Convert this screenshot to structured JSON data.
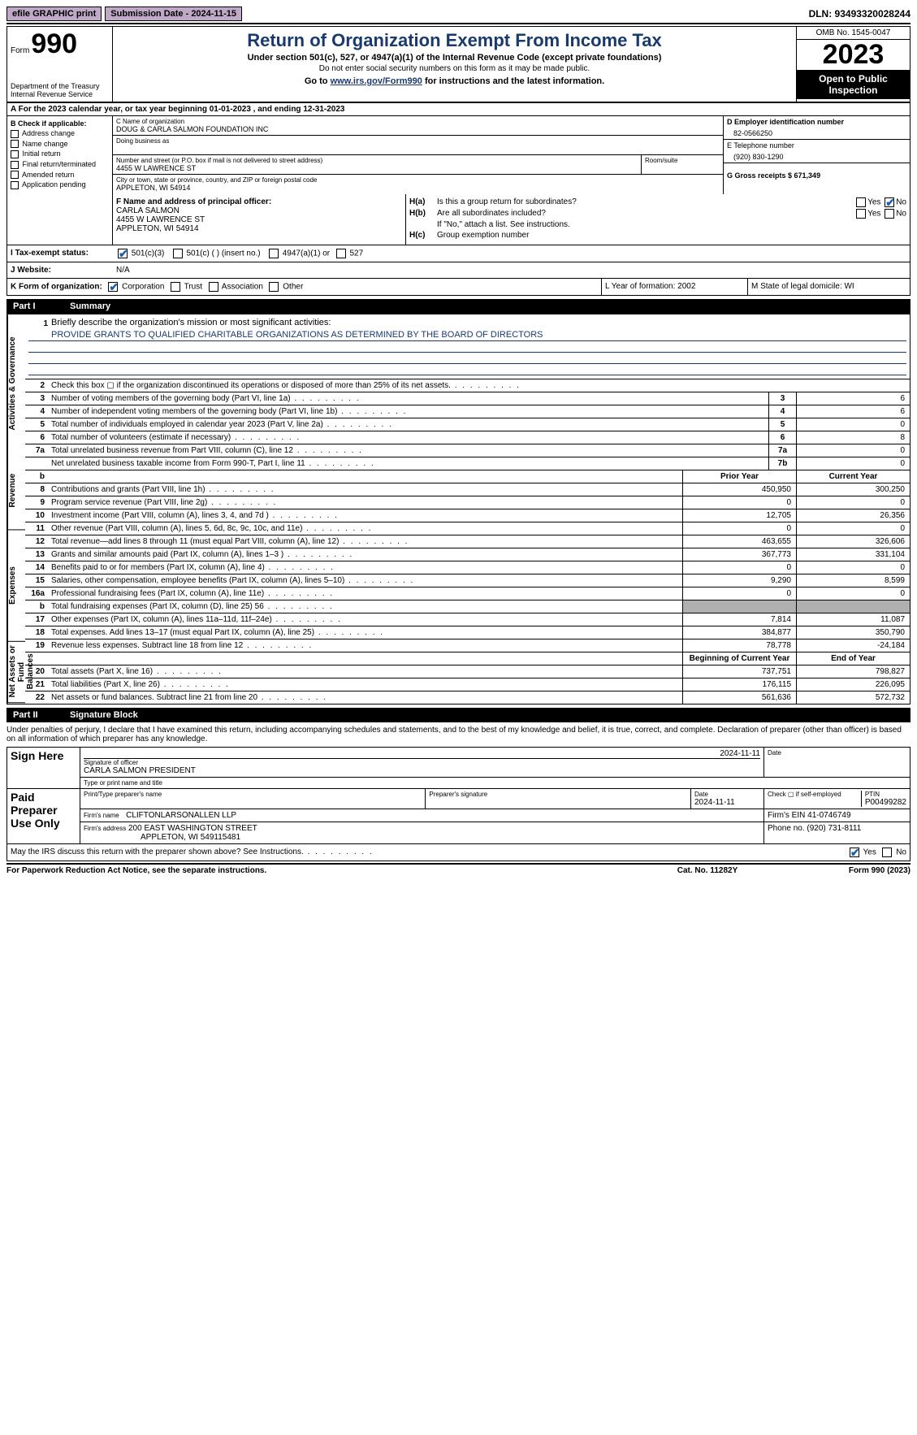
{
  "topbar": {
    "efile": "efile GRAPHIC print",
    "submission": "Submission Date - 2024-11-15",
    "dln": "DLN: 93493320028244"
  },
  "header": {
    "form_word": "Form",
    "form_num": "990",
    "dept": "Department of the Treasury Internal Revenue Service",
    "title": "Return of Organization Exempt From Income Tax",
    "subtitle": "Under section 501(c), 527, or 4947(a)(1) of the Internal Revenue Code (except private foundations)",
    "subtitle2": "Do not enter social security numbers on this form as it may be made public.",
    "goto_pre": "Go to ",
    "goto_link": "www.irs.gov/Form990",
    "goto_post": " for instructions and the latest information.",
    "omb": "OMB No. 1545-0047",
    "year": "2023",
    "inspect": "Open to Public Inspection"
  },
  "row_a": "A  For the 2023 calendar year, or tax year beginning 01-01-2023   , and ending 12-31-2023",
  "col_b": {
    "hdr": "B Check if applicable:",
    "items": [
      "Address change",
      "Name change",
      "Initial return",
      "Final return/terminated",
      "Amended return",
      "Application pending"
    ]
  },
  "col_c": {
    "name_lbl": "C Name of organization",
    "name": "DOUG & CARLA SALMON FOUNDATION INC",
    "dba_lbl": "Doing business as",
    "street_lbl": "Number and street (or P.O. box if mail is not delivered to street address)",
    "street": "4455 W LAWRENCE ST",
    "room_lbl": "Room/suite",
    "city_lbl": "City or town, state or province, country, and ZIP or foreign postal code",
    "city": "APPLETON, WI  54914"
  },
  "col_de": {
    "d_lbl": "D Employer identification number",
    "ein": "82-0566250",
    "e_lbl": "E Telephone number",
    "phone": "(920) 830-1290",
    "g": "G Gross receipts $ 671,349"
  },
  "f": {
    "lbl": "F  Name and address of principal officer:",
    "name": "CARLA SALMON",
    "street": "4455 W LAWRENCE ST",
    "city": "APPLETON, WI  54914"
  },
  "h": {
    "a": "Is this a group return for subordinates?",
    "b": "Are all subordinates included?",
    "b2": "If \"No,\" attach a list. See instructions.",
    "c": "Group exemption number",
    "yes": "Yes",
    "no": "No"
  },
  "status": {
    "i_lbl": "I    Tax-exempt status:",
    "o1": "501(c)(3)",
    "o2": "501(c) (  ) (insert no.)",
    "o3": "4947(a)(1) or",
    "o4": "527"
  },
  "j": {
    "lbl": "J    Website:",
    "val": "N/A"
  },
  "k": {
    "lbl": "K Form of organization:",
    "o1": "Corporation",
    "o2": "Trust",
    "o3": "Association",
    "o4": "Other",
    "l": "L Year of formation: 2002",
    "m": "M State of legal domicile: WI"
  },
  "part1": {
    "num": "Part I",
    "title": "Summary"
  },
  "mission": {
    "n": "1",
    "lbl": "Briefly describe the organization's mission or most significant activities:",
    "text": "PROVIDE GRANTS TO QUALIFIED CHARITABLE ORGANIZATIONS AS DETERMINED BY THE BOARD OF DIRECTORS"
  },
  "gov_rows": [
    {
      "n": "2",
      "d": "Check this box ▢ if the organization discontinued its operations or disposed of more than 25% of its net assets."
    },
    {
      "n": "3",
      "d": "Number of voting members of the governing body (Part VI, line 1a)",
      "c": "3",
      "v": "6"
    },
    {
      "n": "4",
      "d": "Number of independent voting members of the governing body (Part VI, line 1b)",
      "c": "4",
      "v": "6"
    },
    {
      "n": "5",
      "d": "Total number of individuals employed in calendar year 2023 (Part V, line 2a)",
      "c": "5",
      "v": "0"
    },
    {
      "n": "6",
      "d": "Total number of volunteers (estimate if necessary)",
      "c": "6",
      "v": "8"
    },
    {
      "n": "7a",
      "d": "Total unrelated business revenue from Part VIII, column (C), line 12",
      "c": "7a",
      "v": "0"
    },
    {
      "n": "",
      "d": "Net unrelated business taxable income from Form 990-T, Part I, line 11",
      "c": "7b",
      "v": "0"
    }
  ],
  "col_hdrs": {
    "b": "b",
    "py": "Prior Year",
    "cy": "Current Year"
  },
  "rev_rows": [
    {
      "n": "8",
      "d": "Contributions and grants (Part VIII, line 1h)",
      "py": "450,950",
      "cy": "300,250"
    },
    {
      "n": "9",
      "d": "Program service revenue (Part VIII, line 2g)",
      "py": "0",
      "cy": "0"
    },
    {
      "n": "10",
      "d": "Investment income (Part VIII, column (A), lines 3, 4, and 7d )",
      "py": "12,705",
      "cy": "26,356"
    },
    {
      "n": "11",
      "d": "Other revenue (Part VIII, column (A), lines 5, 6d, 8c, 9c, 10c, and 11e)",
      "py": "0",
      "cy": "0"
    },
    {
      "n": "12",
      "d": "Total revenue—add lines 8 through 11 (must equal Part VIII, column (A), line 12)",
      "py": "463,655",
      "cy": "326,606"
    }
  ],
  "exp_rows": [
    {
      "n": "13",
      "d": "Grants and similar amounts paid (Part IX, column (A), lines 1–3 )",
      "py": "367,773",
      "cy": "331,104"
    },
    {
      "n": "14",
      "d": "Benefits paid to or for members (Part IX, column (A), line 4)",
      "py": "0",
      "cy": "0"
    },
    {
      "n": "15",
      "d": "Salaries, other compensation, employee benefits (Part IX, column (A), lines 5–10)",
      "py": "9,290",
      "cy": "8,599"
    },
    {
      "n": "16a",
      "d": "Professional fundraising fees (Part IX, column (A), line 11e)",
      "py": "0",
      "cy": "0"
    },
    {
      "n": "b",
      "d": "Total fundraising expenses (Part IX, column (D), line 25) 56",
      "py": "",
      "cy": "",
      "shade": true
    },
    {
      "n": "17",
      "d": "Other expenses (Part IX, column (A), lines 11a–11d, 11f–24e)",
      "py": "7,814",
      "cy": "11,087"
    },
    {
      "n": "18",
      "d": "Total expenses. Add lines 13–17 (must equal Part IX, column (A), line 25)",
      "py": "384,877",
      "cy": "350,790"
    },
    {
      "n": "19",
      "d": "Revenue less expenses. Subtract line 18 from line 12",
      "py": "78,778",
      "cy": "-24,184"
    }
  ],
  "na_hdrs": {
    "py": "Beginning of Current Year",
    "cy": "End of Year"
  },
  "na_rows": [
    {
      "n": "20",
      "d": "Total assets (Part X, line 16)",
      "py": "737,751",
      "cy": "798,827"
    },
    {
      "n": "21",
      "d": "Total liabilities (Part X, line 26)",
      "py": "176,115",
      "cy": "226,095"
    },
    {
      "n": "22",
      "d": "Net assets or fund balances. Subtract line 21 from line 20",
      "py": "561,636",
      "cy": "572,732"
    }
  ],
  "vtabs": {
    "gov": "Activities & Governance",
    "rev": "Revenue",
    "exp": "Expenses",
    "na": "Net Assets or Fund Balances"
  },
  "part2": {
    "num": "Part II",
    "title": "Signature Block"
  },
  "sig": {
    "intro": "Under penalties of perjury, I declare that I have examined this return, including accompanying schedules and statements, and to the best of my knowledge and belief, it is true, correct, and complete. Declaration of preparer (other than officer) is based on all information of which preparer has any knowledge.",
    "sign_here": "Sign Here",
    "date1": "2024-11-11",
    "sig_of": "Signature of officer",
    "officer": "CARLA SALMON  PRESIDENT",
    "type_lbl": "Type or print name and title",
    "date_lbl": "Date",
    "paid": "Paid Preparer Use Only",
    "prep_name_lbl": "Print/Type preparer's name",
    "prep_sig_lbl": "Preparer's signature",
    "date2": "2024-11-11",
    "check_self": "Check ▢ if self-employed",
    "ptin_lbl": "PTIN",
    "ptin": "P00499282",
    "firm_name_lbl": "Firm's name",
    "firm_name": "CLIFTONLARSONALLEN LLP",
    "firm_ein": "Firm's EIN 41-0746749",
    "firm_addr_lbl": "Firm's address",
    "firm_addr1": "200 EAST WASHINGTON STREET",
    "firm_addr2": "APPLETON, WI  549115481",
    "firm_phone": "Phone no. (920) 731-8111",
    "discuss": "May the IRS discuss this return with the preparer shown above? See Instructions."
  },
  "footer": {
    "left": "For Paperwork Reduction Act Notice, see the separate instructions.",
    "mid": "Cat. No. 11282Y",
    "right": "Form 990 (2023)"
  }
}
